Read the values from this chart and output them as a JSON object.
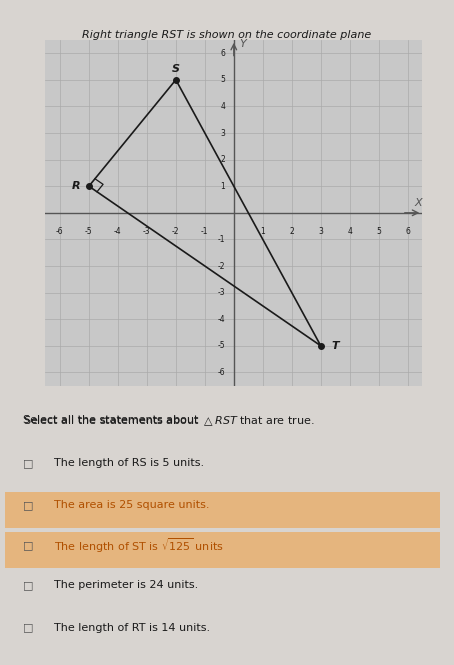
{
  "title": "Right triangle RST is shown on the coordinate plane",
  "vertices": {
    "R": [
      -5,
      1
    ],
    "S": [
      -2,
      5
    ],
    "T": [
      3,
      -5
    ]
  },
  "right_angle_vertex": "R",
  "xlim": [
    -6.5,
    6.5
  ],
  "ylim": [
    -6.5,
    6.5
  ],
  "xticks": [
    -6,
    -5,
    -4,
    -3,
    -2,
    -1,
    1,
    2,
    3,
    4,
    5,
    6
  ],
  "yticks": [
    -6,
    -5,
    -4,
    -3,
    -2,
    -1,
    1,
    2,
    3,
    4,
    5,
    6
  ],
  "label_offsets": {
    "R": [
      -0.45,
      0.0
    ],
    "S": [
      0.0,
      0.4
    ],
    "T": [
      0.5,
      0.0
    ]
  },
  "checkbox_texts": [
    "The length of RS is 5 units.",
    "The area is 25 square units.",
    "The length of ST is \\sqrt{125} units",
    "The perimeter is 24 units.",
    "The length of RT is 14 units."
  ],
  "highlighted": [
    false,
    true,
    true,
    false,
    false
  ],
  "fig_bg": "#d8d4d0",
  "plot_bg": "#c8c8c8",
  "grid_color": "#aaaaaa",
  "axis_color": "#555555",
  "tri_color": "#1a1a1a",
  "text_color": "#1a1a1a",
  "highlight_color": "#e8b070",
  "orange_text": "#b05000"
}
